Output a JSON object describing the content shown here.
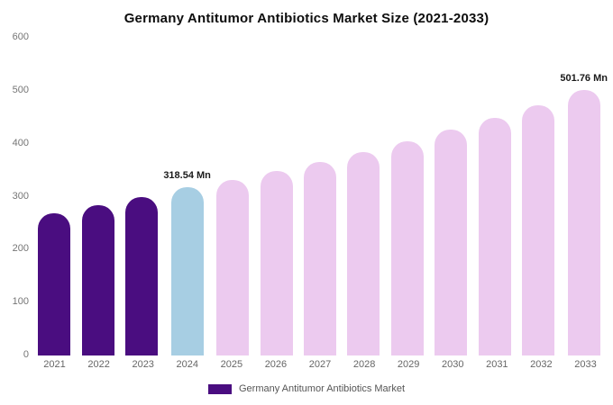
{
  "chart_data": {
    "type": "bar",
    "title": "Germany Antitumor Antibiotics Market Size (2021-2033)",
    "categories": [
      "2021",
      "2022",
      "2023",
      "2024",
      "2025",
      "2026",
      "2027",
      "2028",
      "2029",
      "2030",
      "2031",
      "2032",
      "2033"
    ],
    "values": [
      268,
      284,
      299,
      318.54,
      331,
      348,
      366,
      384,
      404,
      427,
      448,
      472,
      501.76
    ],
    "ylim": [
      0,
      600
    ],
    "yticks": [
      0,
      100,
      200,
      300,
      400,
      500,
      600
    ],
    "bar_colors": [
      "#4a0d80",
      "#4a0d80",
      "#4a0d80",
      "#a7cee3",
      "#eccaef",
      "#eccaef",
      "#eccaef",
      "#eccaef",
      "#eccaef",
      "#eccaef",
      "#eccaef",
      "#eccaef",
      "#eccaef"
    ],
    "annotations": {
      "3": "318.54 Mn",
      "12": "501.76 Mn"
    },
    "grid": "off",
    "legend_position": "bottom",
    "legend": [
      {
        "label": "Germany Antitumor Antibiotics Market",
        "color": "#4a0d80"
      }
    ]
  }
}
